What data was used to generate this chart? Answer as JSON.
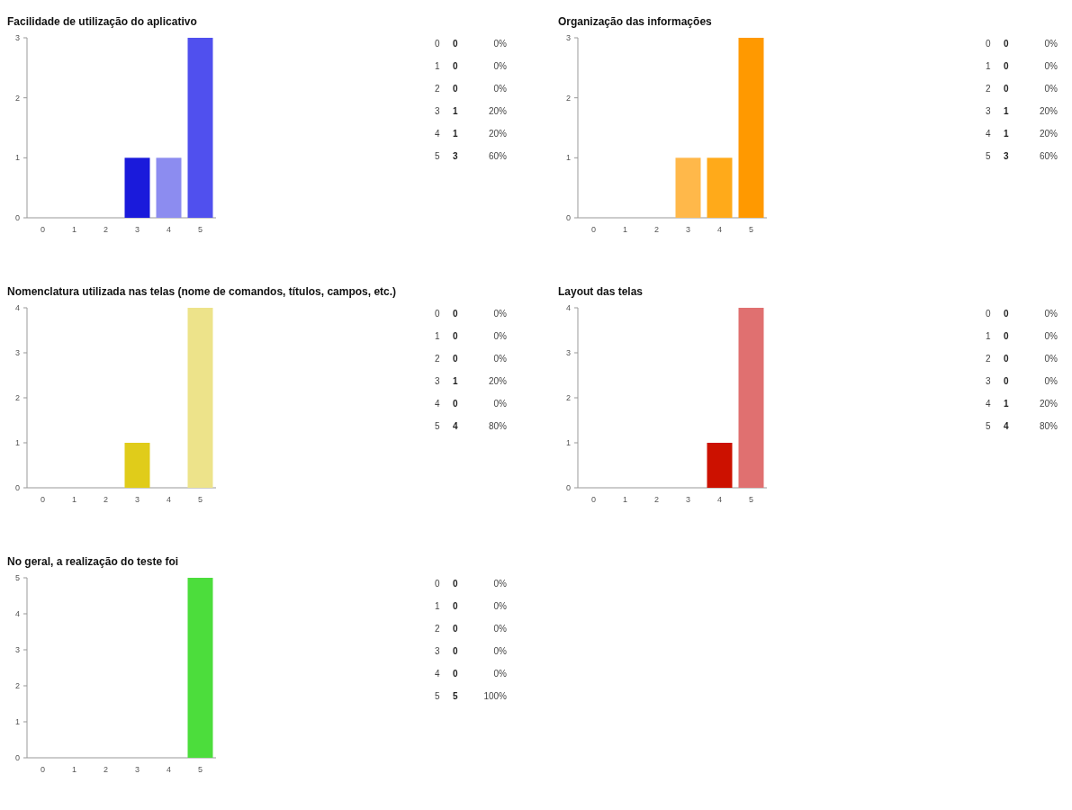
{
  "chart_data": [
    {
      "type": "bar",
      "title": "Facilidade de utilização do aplicativo",
      "categories": [
        "0",
        "1",
        "2",
        "3",
        "4",
        "5"
      ],
      "values": [
        0,
        0,
        0,
        1,
        1,
        3
      ],
      "colors": [
        "#1a1adb",
        "#1a1adb",
        "#1a1adb",
        "#1a1adb",
        "#8c8cf0",
        "#5050ee"
      ],
      "ylim": [
        0,
        3
      ],
      "yticks": [
        0,
        1,
        2,
        3
      ],
      "annotations": [
        "0",
        "0%",
        "0",
        "0%",
        "0",
        "0%",
        "1",
        "20%",
        "1",
        "20%",
        "3",
        "60%"
      ]
    },
    {
      "type": "bar",
      "title": "Organização das informações",
      "categories": [
        "0",
        "1",
        "2",
        "3",
        "4",
        "5"
      ],
      "values": [
        0,
        0,
        0,
        1,
        1,
        3
      ],
      "colors": [
        "#ffb84a",
        "#ffb84a",
        "#ffb84a",
        "#ffb84a",
        "#ffaa1a",
        "#ff9900"
      ],
      "ylim": [
        0,
        3
      ],
      "yticks": [
        0,
        1,
        2,
        3
      ],
      "annotations": [
        "0",
        "0%",
        "0",
        "0%",
        "0",
        "0%",
        "1",
        "20%",
        "1",
        "20%",
        "3",
        "60%"
      ]
    },
    {
      "type": "bar",
      "title": "Nomenclatura utilizada nas telas (nome de comandos, títulos, campos, etc.)",
      "categories": [
        "0",
        "1",
        "2",
        "3",
        "4",
        "5"
      ],
      "values": [
        0,
        0,
        0,
        1,
        0,
        4
      ],
      "colors": [
        "#e0cc1a",
        "#e0cc1a",
        "#e0cc1a",
        "#e0cc1a",
        "#ede38a",
        "#ede38a"
      ],
      "ylim": [
        0,
        4
      ],
      "yticks": [
        0,
        1,
        2,
        3,
        4
      ],
      "annotations": [
        "0",
        "0%",
        "0",
        "0%",
        "0",
        "0%",
        "1",
        "20%",
        "0",
        "0%",
        "4",
        "80%"
      ]
    },
    {
      "type": "bar",
      "title": "Layout das telas",
      "categories": [
        "0",
        "1",
        "2",
        "3",
        "4",
        "5"
      ],
      "values": [
        0,
        0,
        0,
        0,
        1,
        4
      ],
      "colors": [
        "#cc1100",
        "#cc1100",
        "#cc1100",
        "#cc1100",
        "#cc1100",
        "#e07070"
      ],
      "ylim": [
        0,
        4
      ],
      "yticks": [
        0,
        1,
        2,
        3,
        4
      ],
      "annotations": [
        "0",
        "0%",
        "0",
        "0%",
        "0",
        "0%",
        "0",
        "0%",
        "1",
        "20%",
        "4",
        "80%"
      ]
    },
    {
      "type": "bar",
      "title": "No geral, a realização do teste foi",
      "categories": [
        "0",
        "1",
        "2",
        "3",
        "4",
        "5"
      ],
      "values": [
        0,
        0,
        0,
        0,
        0,
        5
      ],
      "colors": [
        "#4cdd3c",
        "#4cdd3c",
        "#4cdd3c",
        "#4cdd3c",
        "#4cdd3c",
        "#4cdd3c"
      ],
      "ylim": [
        0,
        5
      ],
      "yticks": [
        0,
        1,
        2,
        3,
        4,
        5
      ],
      "annotations": [
        "0",
        "0%",
        "0",
        "0%",
        "0",
        "0%",
        "0",
        "0%",
        "0",
        "0%",
        "5",
        "100%"
      ]
    }
  ]
}
